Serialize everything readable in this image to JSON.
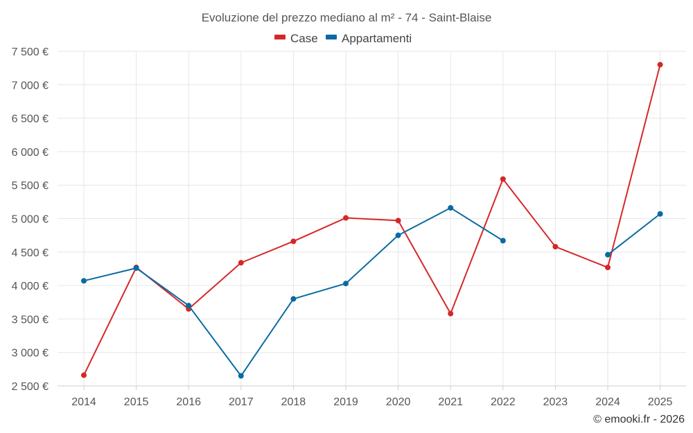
{
  "chart_data": {
    "type": "line",
    "title": "Evoluzione del prezzo mediano al m² - 74 - Saint-Blaise",
    "categories": [
      "2014",
      "2015",
      "2016",
      "2017",
      "2018",
      "2019",
      "2020",
      "2021",
      "2022",
      "2023",
      "2024",
      "2025"
    ],
    "series": [
      {
        "name": "Case",
        "color": "#d62728",
        "values": [
          2660,
          4270,
          3650,
          4340,
          4660,
          5010,
          4970,
          3580,
          5590,
          4580,
          4270,
          7300
        ]
      },
      {
        "name": "Appartamenti",
        "color": "#0a6aa1",
        "values": [
          4070,
          4260,
          3700,
          2650,
          3800,
          4030,
          4750,
          5160,
          4670,
          null,
          4460,
          5070
        ]
      }
    ],
    "ylim": [
      2500,
      7500
    ],
    "yticks": [
      2500,
      3000,
      3500,
      4000,
      4500,
      5000,
      5500,
      6000,
      6500,
      7000,
      7500
    ],
    "ytick_labels": [
      "2 500 €",
      "3 000 €",
      "3 500 €",
      "4 000 €",
      "4 500 €",
      "5 000 €",
      "5 500 €",
      "6 000 €",
      "6 500 €",
      "7 000 €",
      "7 500 €"
    ],
    "grid": true,
    "legend": "top-center",
    "xlabel": "",
    "ylabel": ""
  },
  "credit": "© emooki.fr - 2026"
}
